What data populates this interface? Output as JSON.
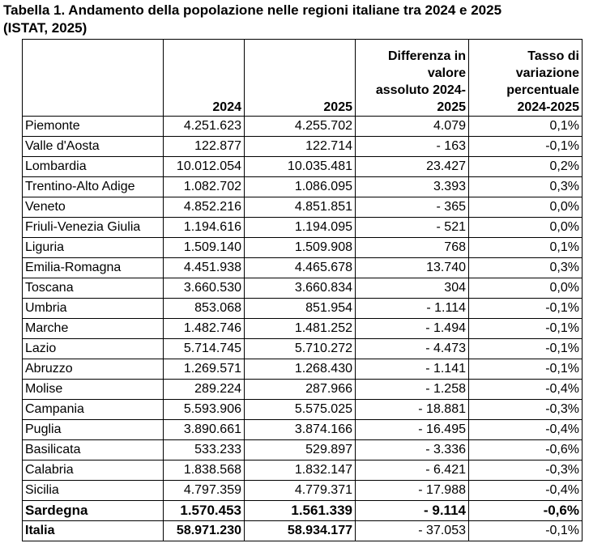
{
  "title_line1": "Tabella 1.  Andamento della popolazione nelle regioni italiane tra 2024 e 2025",
  "title_line2": "(ISTAT, 2025)",
  "headers": {
    "region": "",
    "y2024": "2024",
    "y2025": "2025",
    "diff": [
      "Differenza in",
      "valore",
      "assoluto 2024-",
      "2025"
    ],
    "rate": [
      "Tasso di",
      "variazione",
      "percentuale",
      "2024-2025"
    ]
  },
  "rows": [
    {
      "region": "Piemonte",
      "y2024": "4.251.623",
      "y2025": "4.255.702",
      "diff": "4.079",
      "rate": "0,1%"
    },
    {
      "region": "Valle d'Aosta",
      "y2024": "122.877",
      "y2025": "122.714",
      "diff": "- 163",
      "rate": "-0,1%"
    },
    {
      "region": "Lombardia",
      "y2024": "10.012.054",
      "y2025": "10.035.481",
      "diff": "23.427",
      "rate": "0,2%"
    },
    {
      "region": "Trentino-Alto Adige",
      "y2024": "1.082.702",
      "y2025": "1.086.095",
      "diff": "3.393",
      "rate": "0,3%"
    },
    {
      "region": "Veneto",
      "y2024": "4.852.216",
      "y2025": "4.851.851",
      "diff": "- 365",
      "rate": "0,0%"
    },
    {
      "region": "Friuli-Venezia Giulia",
      "y2024": "1.194.616",
      "y2025": "1.194.095",
      "diff": "- 521",
      "rate": "0,0%"
    },
    {
      "region": "Liguria",
      "y2024": "1.509.140",
      "y2025": "1.509.908",
      "diff": "768",
      "rate": "0,1%"
    },
    {
      "region": "Emilia-Romagna",
      "y2024": "4.451.938",
      "y2025": "4.465.678",
      "diff": "13.740",
      "rate": "0,3%"
    },
    {
      "region": "Toscana",
      "y2024": "3.660.530",
      "y2025": "3.660.834",
      "diff": "304",
      "rate": "0,0%"
    },
    {
      "region": "Umbria",
      "y2024": "853.068",
      "y2025": "851.954",
      "diff": "- 1.114",
      "rate": "-0,1%"
    },
    {
      "region": "Marche",
      "y2024": "1.482.746",
      "y2025": "1.481.252",
      "diff": "- 1.494",
      "rate": "-0,1%"
    },
    {
      "region": "Lazio",
      "y2024": "5.714.745",
      "y2025": "5.710.272",
      "diff": "- 4.473",
      "rate": "-0,1%"
    },
    {
      "region": "Abruzzo",
      "y2024": "1.269.571",
      "y2025": "1.268.430",
      "diff": "- 1.141",
      "rate": "-0,1%"
    },
    {
      "region": "Molise",
      "y2024": "289.224",
      "y2025": "287.966",
      "diff": "- 1.258",
      "rate": "-0,4%"
    },
    {
      "region": "Campania",
      "y2024": "5.593.906",
      "y2025": "5.575.025",
      "diff": "- 18.881",
      "rate": "-0,3%"
    },
    {
      "region": "Puglia",
      "y2024": "3.890.661",
      "y2025": "3.874.166",
      "diff": "- 16.495",
      "rate": "-0,4%"
    },
    {
      "region": "Basilicata",
      "y2024": "533.233",
      "y2025": "529.897",
      "diff": "- 3.336",
      "rate": "-0,6%"
    },
    {
      "region": "Calabria",
      "y2024": "1.838.568",
      "y2025": "1.832.147",
      "diff": "- 6.421",
      "rate": "-0,3%"
    },
    {
      "region": "Sicilia",
      "y2024": "4.797.359",
      "y2025": "4.779.371",
      "diff": "- 17.988",
      "rate": "-0,4%"
    },
    {
      "region": "Sardegna",
      "y2024": "1.570.453",
      "y2025": "1.561.339",
      "diff": "- 9.114",
      "rate": "-0,6%",
      "bold": true
    }
  ],
  "total": {
    "region": "Italia",
    "y2024": "58.971.230",
    "y2025": "58.934.177",
    "diff": "- 37.053",
    "rate": "-0,1%"
  }
}
